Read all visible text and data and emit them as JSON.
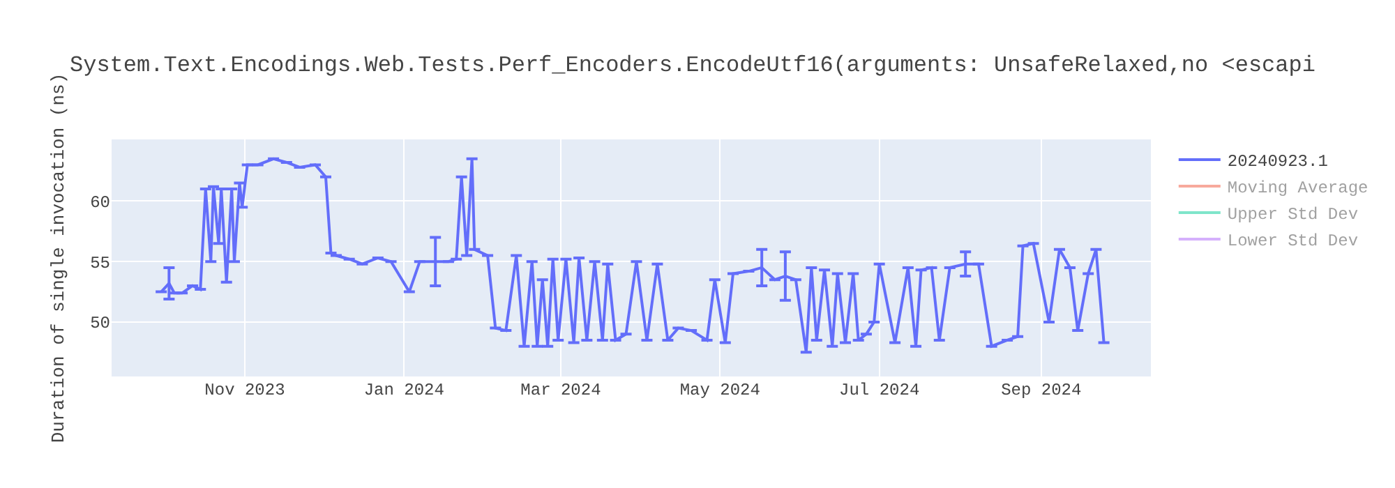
{
  "chart_data": {
    "type": "line",
    "title": "System.Text.Encodings.Web.Tests.Perf_Encoders.EncodeUtf16(arguments: UnsafeRelaxed,no <escapi",
    "ylabel": "Duration of single invocation (ns)",
    "xlim": [
      "2023-09-11",
      "2024-10-13"
    ],
    "xticks": [
      {
        "value": "2023-11-01",
        "label": "Nov 2023"
      },
      {
        "value": "2024-01-01",
        "label": "Jan 2024"
      },
      {
        "value": "2024-03-01",
        "label": "Mar 2024"
      },
      {
        "value": "2024-05-01",
        "label": "May 2024"
      },
      {
        "value": "2024-07-01",
        "label": "Jul 2024"
      },
      {
        "value": "2024-09-01",
        "label": "Sep 2024"
      }
    ],
    "ylim": [
      45.5,
      65.1
    ],
    "yticks": [
      50,
      55,
      60
    ],
    "grid": true,
    "legend": "top right",
    "line_style": "solid",
    "series": [
      {
        "name": "20240923.1",
        "color": "#636efa",
        "x": [
          "2023-09-30",
          "2023-10-03",
          "2023-10-05",
          "2023-10-08",
          "2023-10-12",
          "2023-10-15",
          "2023-10-17",
          "2023-10-19",
          "2023-10-20",
          "2023-10-22",
          "2023-10-23",
          "2023-10-25",
          "2023-10-27",
          "2023-10-28",
          "2023-10-30",
          "2023-10-31",
          "2023-11-02",
          "2023-11-06",
          "2023-11-12",
          "2023-11-17",
          "2023-11-22",
          "2023-11-28",
          "2023-12-02",
          "2023-12-04",
          "2023-12-06",
          "2023-12-11",
          "2023-12-16",
          "2023-12-22",
          "2023-12-27",
          "2024-01-03",
          "2024-01-07",
          "2024-01-13",
          "2024-01-18",
          "2024-01-21",
          "2024-01-23",
          "2024-01-25",
          "2024-01-27",
          "2024-01-28",
          "2024-02-02",
          "2024-02-05",
          "2024-02-09",
          "2024-02-13",
          "2024-02-16",
          "2024-02-19",
          "2024-02-21",
          "2024-02-23",
          "2024-02-25",
          "2024-02-27",
          "2024-02-29",
          "2024-03-03",
          "2024-03-06",
          "2024-03-08",
          "2024-03-11",
          "2024-03-14",
          "2024-03-17",
          "2024-03-19",
          "2024-03-22",
          "2024-03-26",
          "2024-03-30",
          "2024-04-03",
          "2024-04-07",
          "2024-04-11",
          "2024-04-15",
          "2024-04-20",
          "2024-04-26",
          "2024-04-29",
          "2024-05-03",
          "2024-05-06",
          "2024-05-12",
          "2024-05-17",
          "2024-05-22",
          "2024-05-26",
          "2024-05-30",
          "2024-06-03",
          "2024-06-05",
          "2024-06-07",
          "2024-06-10",
          "2024-06-13",
          "2024-06-15",
          "2024-06-18",
          "2024-06-21",
          "2024-06-23",
          "2024-06-26",
          "2024-06-29",
          "2024-07-01",
          "2024-07-07",
          "2024-07-12",
          "2024-07-15",
          "2024-07-17",
          "2024-07-21",
          "2024-07-24",
          "2024-07-28",
          "2024-08-03",
          "2024-08-08",
          "2024-08-13",
          "2024-08-19",
          "2024-08-23",
          "2024-08-25",
          "2024-08-29",
          "2024-09-04",
          "2024-09-08",
          "2024-09-12",
          "2024-09-15",
          "2024-09-19",
          "2024-09-22",
          "2024-09-25"
        ],
        "values": [
          52.5,
          53.2,
          52.4,
          52.4,
          53,
          52.7,
          61,
          55,
          61.2,
          56.5,
          61,
          53.3,
          61,
          55,
          61.5,
          59.5,
          63,
          63,
          63.5,
          63.2,
          62.8,
          63,
          62,
          55.7,
          55.5,
          55.2,
          54.8,
          55.3,
          55,
          52.5,
          55,
          55,
          55,
          55.2,
          62,
          55.5,
          63.5,
          56,
          55.5,
          49.5,
          49.3,
          55.5,
          48,
          55,
          48,
          53.5,
          48,
          55.2,
          48.5,
          55.2,
          48.3,
          55.3,
          48.5,
          55,
          48.5,
          54.8,
          48.5,
          49,
          55,
          48.5,
          54.8,
          48.5,
          49.5,
          49.3,
          48.5,
          53.5,
          48.3,
          54,
          54.2,
          54.5,
          53.5,
          53.8,
          53.5,
          47.5,
          54.5,
          48.5,
          54.3,
          48,
          54,
          48.3,
          54,
          48.5,
          49,
          50,
          54.8,
          48.3,
          54.5,
          48,
          54.3,
          54.5,
          48.5,
          54.5,
          54.8,
          54.8,
          48,
          48.5,
          48.8,
          56.3,
          56.5,
          50,
          56,
          54.5,
          49.3,
          54,
          56,
          48.3
        ],
        "errors": [
          null,
          1.3,
          null,
          null,
          null,
          null,
          null,
          null,
          null,
          null,
          null,
          null,
          null,
          null,
          null,
          null,
          null,
          null,
          null,
          null,
          null,
          null,
          null,
          null,
          null,
          null,
          null,
          null,
          null,
          null,
          null,
          2,
          null,
          null,
          null,
          null,
          null,
          null,
          null,
          null,
          null,
          null,
          null,
          null,
          null,
          null,
          null,
          null,
          null,
          null,
          null,
          null,
          null,
          null,
          null,
          null,
          null,
          null,
          null,
          null,
          null,
          null,
          null,
          null,
          null,
          null,
          null,
          null,
          null,
          1.5,
          null,
          2,
          null,
          null,
          null,
          null,
          null,
          null,
          null,
          null,
          null,
          null,
          null,
          null,
          null,
          null,
          null,
          null,
          null,
          null,
          null,
          null,
          1,
          null,
          null,
          null,
          null,
          null,
          null,
          null,
          null,
          null,
          null,
          null,
          null,
          null
        ]
      },
      {
        "name": "Moving Average",
        "color": "#ef553b"
      },
      {
        "name": "Upper Std Dev",
        "color": "#00cc96"
      },
      {
        "name": "Lower Std Dev",
        "color": "#ab63fa"
      }
    ]
  }
}
